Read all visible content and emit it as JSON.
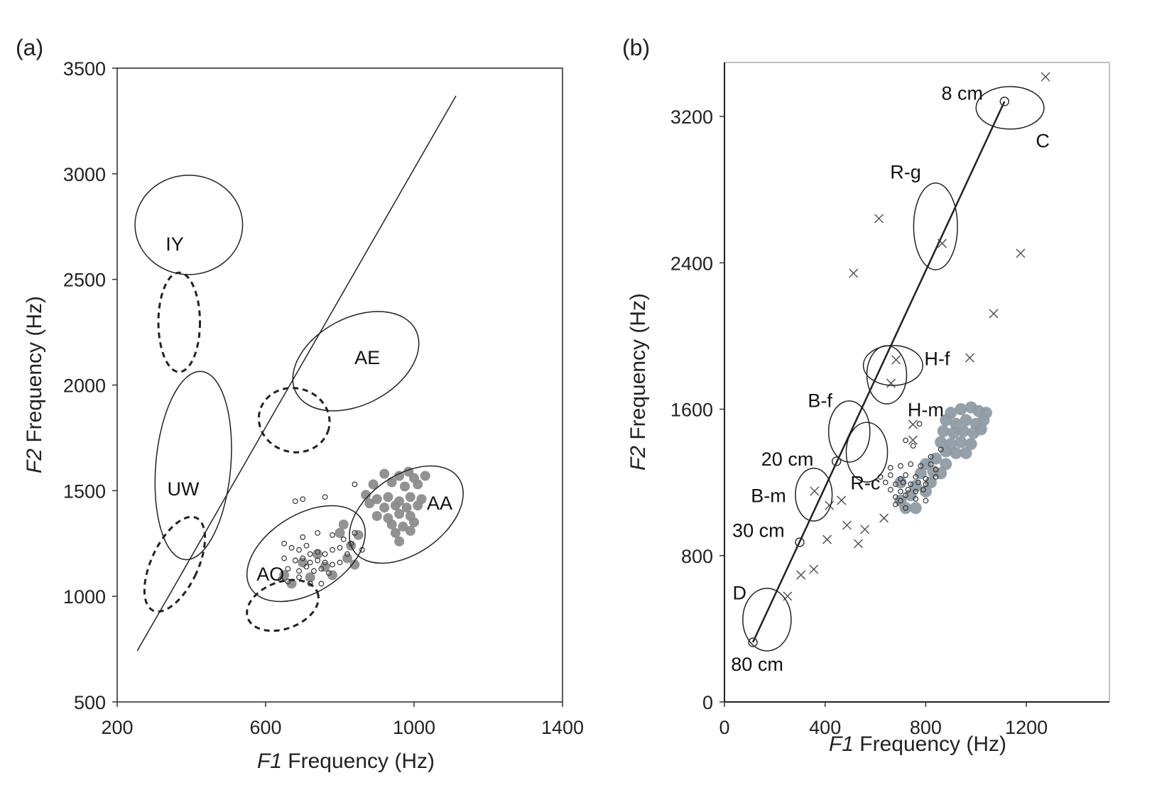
{
  "chart_data": [
    {
      "panel": "(a)",
      "type": "scatter",
      "xlabel_italic": "F1",
      "xlabel_rest": " Frequency (Hz)",
      "ylabel_italic": "F2",
      "ylabel_rest": " Frequency (Hz)",
      "xlim": [
        200,
        1400
      ],
      "ylim": [
        500,
        3500
      ],
      "xticks": [
        "200",
        "600",
        "1000",
        "1400"
      ],
      "yticks": [
        "500",
        "1000",
        "1500",
        "2000",
        "2500",
        "3000",
        "3500"
      ],
      "line": [
        [
          254,
          742
        ],
        [
          1113,
          3369
        ]
      ],
      "ellipses": [
        {
          "name": "IY",
          "style": "solid",
          "cx": 393,
          "cy": 2758,
          "rx": 145,
          "ry": 235,
          "angle": 0
        },
        {
          "name": "UW",
          "style": "solid",
          "cx": 405,
          "cy": 1619,
          "rx": 101,
          "ry": 447,
          "angle": 5
        },
        {
          "name": "AE",
          "style": "solid",
          "cx": 843,
          "cy": 2113,
          "rx": 182,
          "ry": 205,
          "angle": -28
        },
        {
          "name": "AA",
          "style": "solid",
          "cx": 979,
          "cy": 1387,
          "rx": 172,
          "ry": 185,
          "angle": -35
        },
        {
          "name": "AO",
          "style": "solid",
          "cx": 709,
          "cy": 1202,
          "rx": 176,
          "ry": 185,
          "angle": -32
        },
        {
          "name": "IY-dashed",
          "style": "dashed",
          "cx": 367,
          "cy": 2297,
          "rx": 56,
          "ry": 235,
          "angle": 0
        },
        {
          "name": "UW-dashed",
          "style": "dashed",
          "cx": 355,
          "cy": 1152,
          "rx": 63,
          "ry": 242,
          "angle": 25
        },
        {
          "name": "AE-dashed",
          "style": "dashed",
          "cx": 677,
          "cy": 1834,
          "rx": 96,
          "ry": 151,
          "angle": 15
        },
        {
          "name": "AO-dashed",
          "style": "dashed",
          "cx": 646,
          "cy": 957,
          "rx": 100,
          "ry": 111,
          "angle": -20
        }
      ],
      "labels": [
        {
          "text": "IY",
          "x": 355,
          "y": 2670
        },
        {
          "text": "UW",
          "x": 378,
          "y": 1511
        },
        {
          "text": "AE",
          "x": 874,
          "y": 2133
        },
        {
          "text": "AA",
          "x": 1069,
          "y": 1444
        },
        {
          "text": "AO",
          "x": 613,
          "y": 1108
        }
      ],
      "filled_points": [
        [
          920,
          1580
        ],
        [
          960,
          1570
        ],
        [
          985,
          1590
        ],
        [
          1000,
          1560
        ],
        [
          1030,
          1570
        ],
        [
          890,
          1530
        ],
        [
          940,
          1540
        ],
        [
          975,
          1520
        ],
        [
          1010,
          1530
        ],
        [
          870,
          1480
        ],
        [
          900,
          1460
        ],
        [
          930,
          1470
        ],
        [
          960,
          1450
        ],
        [
          990,
          1470
        ],
        [
          1020,
          1460
        ],
        [
          880,
          1440
        ],
        [
          920,
          1420
        ],
        [
          950,
          1430
        ],
        [
          980,
          1420
        ],
        [
          1010,
          1430
        ],
        [
          900,
          1380
        ],
        [
          930,
          1370
        ],
        [
          960,
          1390
        ],
        [
          990,
          1380
        ],
        [
          940,
          1340
        ],
        [
          970,
          1330
        ],
        [
          1000,
          1350
        ],
        [
          950,
          1300
        ],
        [
          990,
          1310
        ],
        [
          960,
          1260
        ],
        [
          830,
          1240
        ],
        [
          850,
          1290
        ],
        [
          820,
          1180
        ],
        [
          840,
          1150
        ],
        [
          810,
          1340
        ],
        [
          800,
          1300
        ],
        [
          780,
          1100
        ],
        [
          760,
          1140
        ],
        [
          740,
          1200
        ],
        [
          700,
          1160
        ],
        [
          720,
          1090
        ],
        [
          670,
          1060
        ],
        [
          650,
          1100
        ]
      ],
      "open_points": [
        [
          680,
          1450
        ],
        [
          700,
          1460
        ],
        [
          760,
          1470
        ],
        [
          840,
          1530
        ],
        [
          700,
          1280
        ],
        [
          740,
          1300
        ],
        [
          780,
          1290
        ],
        [
          810,
          1270
        ],
        [
          650,
          1250
        ],
        [
          670,
          1230
        ],
        [
          690,
          1220
        ],
        [
          710,
          1240
        ],
        [
          720,
          1200
        ],
        [
          740,
          1210
        ],
        [
          760,
          1200
        ],
        [
          780,
          1220
        ],
        [
          800,
          1230
        ],
        [
          820,
          1200
        ],
        [
          650,
          1180
        ],
        [
          680,
          1170
        ],
        [
          700,
          1180
        ],
        [
          720,
          1160
        ],
        [
          740,
          1170
        ],
        [
          760,
          1160
        ],
        [
          780,
          1150
        ],
        [
          800,
          1160
        ],
        [
          660,
          1130
        ],
        [
          690,
          1120
        ],
        [
          710,
          1140
        ],
        [
          730,
          1120
        ],
        [
          750,
          1130
        ],
        [
          770,
          1110
        ],
        [
          640,
          1080
        ],
        [
          660,
          1070
        ],
        [
          690,
          1090
        ],
        [
          720,
          1060
        ],
        [
          750,
          1060
        ],
        [
          840,
          1300
        ],
        [
          830,
          1250
        ],
        [
          860,
          1220
        ]
      ]
    },
    {
      "panel": "(b)",
      "type": "scatter",
      "xlabel_italic": "F1",
      "xlabel_rest": " Frequency (Hz)",
      "ylabel_italic": "F2",
      "ylabel_rest": " Frequency (Hz)",
      "xlim": [
        0,
        1530
      ],
      "ylim": [
        0,
        3495
      ],
      "xticks": [
        "0",
        "400",
        "800",
        "1200"
      ],
      "yticks": [
        "0",
        "800",
        "1600",
        "2400",
        "3200"
      ],
      "line": [
        [
          113,
          326
        ],
        [
          1113,
          3282
        ]
      ],
      "markers": [
        {
          "text": "80 cm",
          "x": 113,
          "y": 326,
          "lx": 130,
          "ly": 210
        },
        {
          "text": "30 cm",
          "x": 299,
          "y": 873,
          "lx": 135,
          "ly": 940
        },
        {
          "text": "20 cm",
          "x": 445,
          "y": 1315,
          "lx": 250,
          "ly": 1330
        },
        {
          "text": "8 cm",
          "x": 1113,
          "y": 3282,
          "lx": 945,
          "ly": 3330
        }
      ],
      "ellipses": [
        {
          "name": "C",
          "style": "solid",
          "cx": 1135,
          "cy": 3247,
          "rx": 135,
          "ry": 116,
          "angle": 0
        },
        {
          "name": "R-g",
          "style": "solid",
          "cx": 839,
          "cy": 2599,
          "rx": 87,
          "ry": 237,
          "angle": 0
        },
        {
          "name": "H-f",
          "style": "solid",
          "cx": 670,
          "cy": 1839,
          "rx": 118,
          "ry": 109,
          "angle": 0
        },
        {
          "name": "H-m",
          "style": "solid",
          "cx": 645,
          "cy": 1788,
          "rx": 79,
          "ry": 159,
          "angle": 0
        },
        {
          "name": "B-f",
          "style": "solid",
          "cx": 496,
          "cy": 1478,
          "rx": 82,
          "ry": 167,
          "angle": 0
        },
        {
          "name": "R-c",
          "style": "solid",
          "cx": 566,
          "cy": 1365,
          "rx": 82,
          "ry": 163,
          "angle": 0
        },
        {
          "name": "B-m",
          "style": "solid",
          "cx": 355,
          "cy": 1133,
          "rx": 73,
          "ry": 144,
          "angle": 0
        },
        {
          "name": "D",
          "style": "solid",
          "cx": 169,
          "cy": 450,
          "rx": 96,
          "ry": 171,
          "angle": 0
        }
      ],
      "labels": [
        {
          "text": "C",
          "x": 1265,
          "y": 3070
        },
        {
          "text": "D",
          "x": 60,
          "y": 600
        },
        {
          "text": "R-g",
          "x": 720,
          "y": 2900
        },
        {
          "text": "H-f",
          "x": 845,
          "y": 1880
        },
        {
          "text": "H-m",
          "x": 800,
          "y": 1600
        },
        {
          "text": "B-f",
          "x": 380,
          "y": 1650
        },
        {
          "text": "R-c",
          "x": 560,
          "y": 1200
        },
        {
          "text": "B-m",
          "x": 175,
          "y": 1130
        }
      ],
      "x_points": [
        [
          1276,
          3417
        ],
        [
          865,
          2506
        ],
        [
          614,
          2642
        ],
        [
          513,
          2343
        ],
        [
          1177,
          2452
        ],
        [
          1070,
          2122
        ],
        [
          975,
          1881
        ],
        [
          682,
          1870
        ],
        [
          662,
          1742
        ],
        [
          749,
          1517
        ],
        [
          749,
          1431
        ],
        [
          358,
          1152
        ],
        [
          417,
          1074
        ],
        [
          465,
          1102
        ],
        [
          487,
          966
        ],
        [
          558,
          943
        ],
        [
          408,
          888
        ],
        [
          532,
          865
        ],
        [
          634,
          1005
        ],
        [
          304,
          694
        ],
        [
          355,
          725
        ],
        [
          251,
          578
        ]
      ],
      "filled_points": [
        [
          900,
          1580
        ],
        [
          940,
          1600
        ],
        [
          980,
          1610
        ],
        [
          1010,
          1590
        ],
        [
          1040,
          1580
        ],
        [
          880,
          1540
        ],
        [
          920,
          1520
        ],
        [
          960,
          1540
        ],
        [
          1000,
          1520
        ],
        [
          1030,
          1540
        ],
        [
          870,
          1480
        ],
        [
          910,
          1470
        ],
        [
          950,
          1480
        ],
        [
          990,
          1470
        ],
        [
          1020,
          1490
        ],
        [
          860,
          1420
        ],
        [
          900,
          1410
        ],
        [
          940,
          1420
        ],
        [
          980,
          1410
        ],
        [
          880,
          1370
        ],
        [
          920,
          1360
        ],
        [
          960,
          1360
        ],
        [
          840,
          1330
        ],
        [
          800,
          1300
        ],
        [
          830,
          1260
        ],
        [
          780,
          1250
        ],
        [
          820,
          1200
        ],
        [
          760,
          1180
        ],
        [
          800,
          1150
        ],
        [
          740,
          1130
        ],
        [
          700,
          1100
        ],
        [
          720,
          1060
        ],
        [
          760,
          1060
        ],
        [
          700,
          1200
        ],
        [
          860,
          1250
        ],
        [
          880,
          1300
        ]
      ],
      "open_points": [
        [
          775,
          1520
        ],
        [
          720,
          1430
        ],
        [
          750,
          1400
        ],
        [
          660,
          1280
        ],
        [
          700,
          1290
        ],
        [
          740,
          1300
        ],
        [
          780,
          1290
        ],
        [
          820,
          1300
        ],
        [
          840,
          1270
        ],
        [
          620,
          1230
        ],
        [
          660,
          1240
        ],
        [
          700,
          1220
        ],
        [
          720,
          1240
        ],
        [
          760,
          1230
        ],
        [
          800,
          1220
        ],
        [
          840,
          1230
        ],
        [
          640,
          1200
        ],
        [
          680,
          1190
        ],
        [
          710,
          1200
        ],
        [
          740,
          1190
        ],
        [
          770,
          1200
        ],
        [
          800,
          1190
        ],
        [
          660,
          1160
        ],
        [
          700,
          1150
        ],
        [
          730,
          1160
        ],
        [
          760,
          1150
        ],
        [
          790,
          1160
        ],
        [
          680,
          1120
        ],
        [
          700,
          1100
        ],
        [
          720,
          1130
        ],
        [
          760,
          1110
        ],
        [
          680,
          1080
        ],
        [
          720,
          1060
        ],
        [
          800,
          1100
        ],
        [
          820,
          1340
        ],
        [
          860,
          1380
        ]
      ]
    }
  ]
}
